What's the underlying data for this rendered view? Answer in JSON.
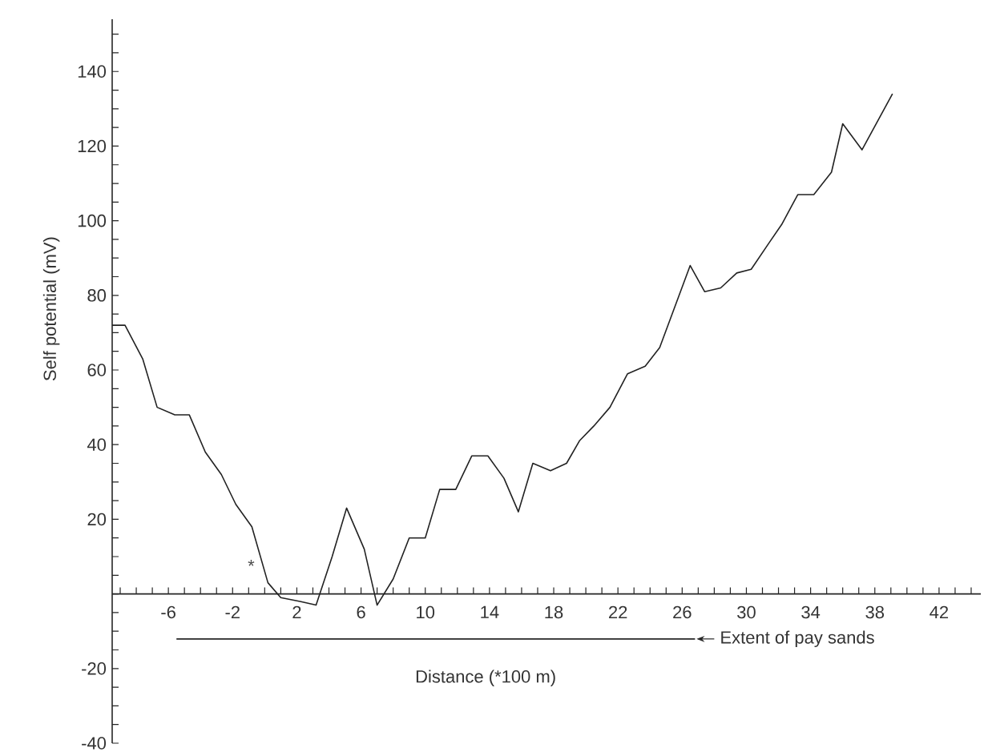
{
  "chart_data": {
    "type": "line",
    "xlabel": "Distance (*100 m)",
    "ylabel": "Self potential (mV)",
    "x": [
      -9.5,
      -8.7,
      -7.6,
      -6.7,
      -5.6,
      -4.7,
      -3.7,
      -2.7,
      -1.8,
      -0.8,
      0.2,
      1.0,
      2.2,
      3.2,
      4.2,
      5.1,
      6.2,
      7.0,
      8.0,
      9.0,
      10.0,
      10.9,
      11.9,
      12.9,
      13.9,
      14.9,
      15.8,
      16.7,
      17.8,
      18.8,
      19.6,
      20.5,
      21.5,
      22.6,
      23.7,
      24.6,
      26.5,
      27.4,
      28.4,
      29.4,
      30.3,
      31.4,
      32.2,
      33.2,
      34.2,
      35.3,
      36.0,
      37.2,
      39.1
    ],
    "series": [
      {
        "color": "#222222",
        "values": [
          72,
          72,
          63,
          50,
          48,
          48,
          38,
          32,
          24,
          18,
          3,
          -1,
          -2,
          -3,
          10,
          23,
          12,
          -3,
          4,
          15,
          15,
          28,
          28,
          37,
          37,
          31,
          22,
          35,
          33,
          35,
          41,
          45,
          50,
          59,
          61,
          66,
          88,
          81,
          82,
          86,
          87,
          94,
          99,
          107,
          107,
          113,
          126,
          119,
          134
        ]
      }
    ],
    "xlim": [
      -9.5,
      44.6
    ],
    "ylim": [
      -40,
      154
    ],
    "xticks": [
      {
        "value": -9,
        "label": null
      },
      {
        "value": -8,
        "label": null
      },
      {
        "value": -7,
        "label": null
      },
      -6,
      {
        "value": -5,
        "label": null
      },
      {
        "value": -4,
        "label": null
      },
      {
        "value": -3,
        "label": null
      },
      -2,
      {
        "value": -1,
        "label": null
      },
      {
        "value": 0,
        "label": null
      },
      {
        "value": 1,
        "label": null
      },
      2,
      {
        "value": 3,
        "label": null
      },
      {
        "value": 4,
        "label": null
      },
      {
        "value": 5,
        "label": null
      },
      6,
      {
        "value": 7,
        "label": null
      },
      {
        "value": 8,
        "label": null
      },
      {
        "value": 9,
        "label": null
      },
      10,
      {
        "value": 11,
        "label": null
      },
      {
        "value": 12,
        "label": null
      },
      {
        "value": 13,
        "label": null
      },
      14,
      {
        "value": 15,
        "label": null
      },
      {
        "value": 16,
        "label": null
      },
      {
        "value": 17,
        "label": null
      },
      18,
      {
        "value": 19,
        "label": null
      },
      {
        "value": 20,
        "label": null
      },
      {
        "value": 21,
        "label": null
      },
      22,
      {
        "value": 23,
        "label": null
      },
      {
        "value": 24,
        "label": null
      },
      {
        "value": 25,
        "label": null
      },
      26,
      {
        "value": 27,
        "label": null
      },
      {
        "value": 28,
        "label": null
      },
      {
        "value": 29,
        "label": null
      },
      30,
      {
        "value": 31,
        "label": null
      },
      {
        "value": 32,
        "label": null
      },
      {
        "value": 33,
        "label": null
      },
      34,
      {
        "value": 35,
        "label": null
      },
      {
        "value": 36,
        "label": null
      },
      {
        "value": 37,
        "label": null
      },
      38,
      {
        "value": 39,
        "label": null
      },
      {
        "value": 40,
        "label": null
      },
      {
        "value": 41,
        "label": null
      },
      42,
      {
        "value": 43,
        "label": null
      },
      {
        "value": 44,
        "label": null
      }
    ],
    "yticks": [
      {
        "value": -40,
        "label": "-40"
      },
      {
        "value": -35,
        "label": null
      },
      {
        "value": -30,
        "label": null
      },
      {
        "value": -25,
        "label": null
      },
      {
        "value": -20,
        "label": "-20"
      },
      {
        "value": -15,
        "label": null
      },
      {
        "value": -10,
        "label": null
      },
      {
        "value": -5,
        "label": null
      },
      {
        "value": 0,
        "label": null
      },
      {
        "value": 5,
        "label": null
      },
      {
        "value": 10,
        "label": null
      },
      {
        "value": 15,
        "label": null
      },
      20,
      {
        "value": 25,
        "label": null
      },
      {
        "value": 30,
        "label": null
      },
      {
        "value": 35,
        "label": null
      },
      40,
      {
        "value": 45,
        "label": null
      },
      {
        "value": 50,
        "label": null
      },
      {
        "value": 55,
        "label": null
      },
      60,
      {
        "value": 65,
        "label": null
      },
      {
        "value": 70,
        "label": null
      },
      {
        "value": 75,
        "label": null
      },
      80,
      {
        "value": 85,
        "label": null
      },
      {
        "value": 90,
        "label": null
      },
      {
        "value": 95,
        "label": null
      },
      100,
      {
        "value": 105,
        "label": null
      },
      {
        "value": 110,
        "label": null
      },
      {
        "value": 115,
        "label": null
      },
      120,
      {
        "value": 125,
        "label": null
      },
      {
        "value": 130,
        "label": null
      },
      {
        "value": 135,
        "label": null
      },
      140,
      {
        "value": 145,
        "label": null
      },
      {
        "value": 150,
        "label": null
      }
    ],
    "annotations": [
      "*",
      "Extent of pay sands"
    ],
    "marker": "none",
    "line_style": "solid"
  }
}
